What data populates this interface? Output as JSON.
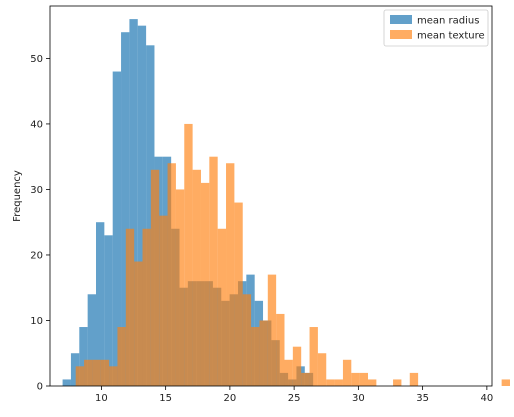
{
  "chart_data": {
    "type": "histogram",
    "title": "",
    "xlabel": "",
    "ylabel": "Frequency",
    "xlim": [
      6.0,
      40.4
    ],
    "ylim": [
      0,
      58
    ],
    "xticks": [
      10,
      15,
      20,
      25,
      30,
      35,
      40
    ],
    "yticks": [
      0,
      10,
      20,
      30,
      40,
      50
    ],
    "grid": false,
    "legend_position": "top-right",
    "bin_width": 0.65,
    "series": [
      {
        "name": "mean radius",
        "color": "#1f77b4",
        "opacity": 0.7,
        "bin_start": 6.98,
        "counts": [
          1,
          5,
          9,
          14,
          25,
          23,
          48,
          54,
          56,
          55,
          52,
          35,
          35,
          24,
          15,
          16,
          16,
          16,
          15,
          13,
          14,
          16,
          17,
          13,
          10,
          7,
          2,
          1,
          3,
          2
        ]
      },
      {
        "name": "mean texture",
        "color": "#ff7f0e",
        "opacity": 0.65,
        "bin_start": 8.0,
        "counts": [
          3,
          4,
          4,
          4,
          3,
          9,
          24,
          19,
          24,
          33,
          26,
          34,
          30,
          40,
          33,
          31,
          35,
          24,
          34,
          28,
          14,
          9,
          10,
          17,
          11,
          4,
          6,
          2,
          9,
          5,
          1,
          1,
          4,
          2,
          2,
          1,
          0,
          0,
          1,
          0,
          2,
          0,
          0,
          0,
          0,
          0,
          0,
          0,
          0,
          0,
          0,
          1
        ]
      }
    ]
  }
}
